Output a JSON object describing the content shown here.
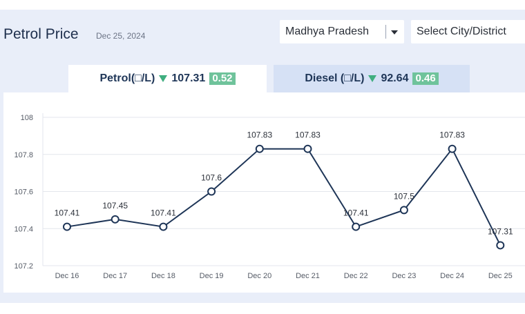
{
  "header": {
    "title": "Petrol Price",
    "date": "Dec 25, 2024"
  },
  "filters": {
    "state": "Madhya Pradesh",
    "city": "Select City/District"
  },
  "tabs": {
    "petrol": {
      "label": "Petrol(□/L)",
      "price": "107.31",
      "change": "0.52",
      "direction": "down"
    },
    "diesel": {
      "label": "Diesel (□/L)",
      "price": "92.64",
      "change": "0.46",
      "direction": "down"
    }
  },
  "colors": {
    "line": "#1e3557",
    "change_badge": "#6fc39b",
    "down_arrow": "#3fae7f"
  },
  "chart_data": {
    "type": "line",
    "categories": [
      "Dec 16",
      "Dec 17",
      "Dec 18",
      "Dec 19",
      "Dec 20",
      "Dec 21",
      "Dec 22",
      "Dec 23",
      "Dec 24",
      "Dec 25"
    ],
    "values": [
      107.41,
      107.45,
      107.41,
      107.6,
      107.83,
      107.83,
      107.41,
      107.5,
      107.83,
      107.31
    ],
    "data_labels": [
      "107.41",
      "107.45",
      "107.41",
      "107.6",
      "107.83",
      "107.83",
      "107.41",
      "107.5",
      "107.83",
      "107.31"
    ],
    "yticks": [
      "107.2",
      "107.4",
      "107.6",
      "107.8",
      "108"
    ],
    "ylim": [
      107.2,
      108
    ],
    "grid": true
  }
}
